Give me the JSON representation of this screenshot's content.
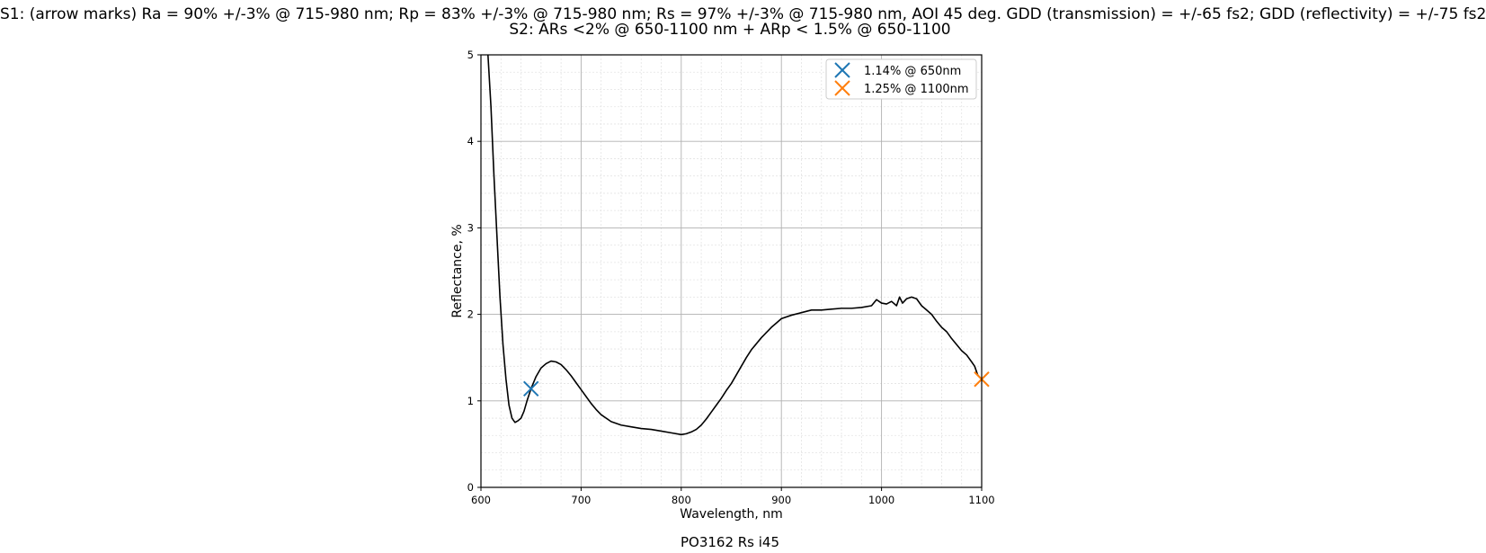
{
  "chart_data": {
    "type": "line",
    "title_line1": "S1: (arrow marks) Ra = 90% +/-3% @ 715-980 nm; Rp = 83% +/-3% @ 715-980 nm; Rs = 97% +/-3% @ 715-980 nm, AOI 45 deg. GDD (transmission) = +/-65 fs2; GDD (reflectivity) = +/-75 fs2",
    "title_line2": "S2: ARs <2% @ 650-1100 nm + ARp < 1.5% @ 650-1100",
    "xlabel": "Wavelength, nm",
    "ylabel": "Reflectance, %",
    "xlim": [
      600,
      1100
    ],
    "ylim": [
      0,
      5
    ],
    "xticks": [
      600,
      700,
      800,
      900,
      1000,
      1100
    ],
    "yticks": [
      0,
      1,
      2,
      3,
      4,
      5
    ],
    "grid": true,
    "minor_grid": true,
    "legend_position": "upper right",
    "series": [
      {
        "color": "#000000",
        "x": [
          607,
          610,
          613,
          616,
          619,
          622,
          625,
          628,
          631,
          634,
          637,
          640,
          643,
          646,
          650,
          655,
          660,
          665,
          670,
          675,
          680,
          685,
          690,
          695,
          700,
          705,
          710,
          715,
          720,
          730,
          740,
          750,
          760,
          770,
          780,
          790,
          800,
          805,
          810,
          815,
          820,
          825,
          830,
          835,
          840,
          845,
          850,
          855,
          860,
          865,
          870,
          875,
          880,
          885,
          890,
          895,
          900,
          910,
          920,
          930,
          940,
          950,
          960,
          970,
          980,
          990,
          995,
          1000,
          1005,
          1010,
          1015,
          1018,
          1021,
          1025,
          1030,
          1035,
          1040,
          1045,
          1050,
          1055,
          1060,
          1065,
          1070,
          1075,
          1080,
          1085,
          1090,
          1093,
          1096,
          1100
        ],
        "y": [
          5.0,
          4.4,
          3.6,
          2.9,
          2.2,
          1.65,
          1.25,
          0.95,
          0.8,
          0.75,
          0.77,
          0.8,
          0.88,
          1.0,
          1.14,
          1.28,
          1.38,
          1.43,
          1.46,
          1.45,
          1.42,
          1.36,
          1.29,
          1.21,
          1.13,
          1.05,
          0.97,
          0.9,
          0.84,
          0.76,
          0.72,
          0.7,
          0.68,
          0.67,
          0.65,
          0.63,
          0.61,
          0.62,
          0.64,
          0.67,
          0.72,
          0.79,
          0.87,
          0.95,
          1.03,
          1.12,
          1.2,
          1.3,
          1.4,
          1.5,
          1.59,
          1.66,
          1.73,
          1.79,
          1.85,
          1.9,
          1.95,
          1.99,
          2.02,
          2.05,
          2.05,
          2.06,
          2.07,
          2.07,
          2.08,
          2.1,
          2.17,
          2.13,
          2.12,
          2.15,
          2.1,
          2.2,
          2.13,
          2.18,
          2.2,
          2.18,
          2.1,
          2.05,
          2.0,
          1.92,
          1.85,
          1.8,
          1.72,
          1.65,
          1.58,
          1.53,
          1.45,
          1.4,
          1.3,
          1.25
        ]
      }
    ],
    "markers": [
      {
        "label": "1.14% @ 650nm",
        "x": 650,
        "y": 1.14,
        "color": "#1f77b4"
      },
      {
        "label": "1.25% @ 1100nm",
        "x": 1100,
        "y": 1.25,
        "color": "#ff7f0e"
      }
    ],
    "caption": "PO3162 Rs i45"
  }
}
